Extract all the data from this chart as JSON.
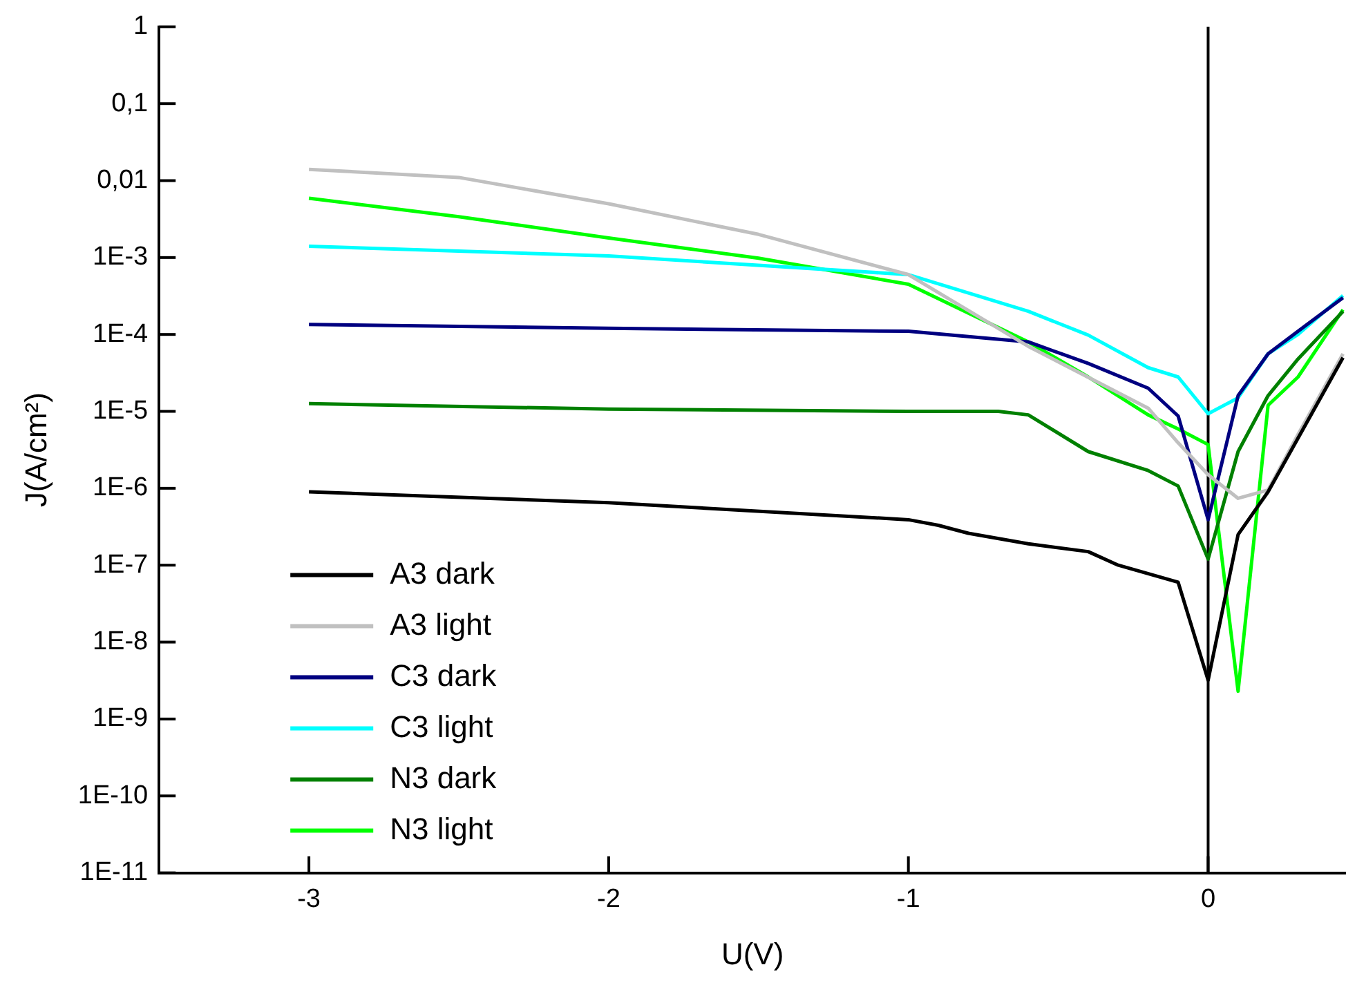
{
  "chart_data": {
    "type": "line",
    "xlabel": "U(V)",
    "ylabel": "J(A/cm²)",
    "log": "y",
    "grid": false,
    "legend": "bottom left",
    "marker": "none",
    "line_style": "solid",
    "xlim": [
      -3.5,
      0.46
    ],
    "xticks": [
      -3,
      -2,
      -1,
      0
    ],
    "ylim": [
      1e-11,
      1
    ],
    "yticks": [
      {
        "value": 1e-11,
        "label": "1E-11"
      },
      {
        "value": 1e-10,
        "label": "1E-10"
      },
      {
        "value": 1e-09,
        "label": "1E-9"
      },
      {
        "value": 1e-08,
        "label": "1E-8"
      },
      {
        "value": 1e-07,
        "label": "1E-7"
      },
      {
        "value": 1e-06,
        "label": "1E-6"
      },
      {
        "value": 1e-05,
        "label": "1E-5"
      },
      {
        "value": 0.0001,
        "label": "1E-4"
      },
      {
        "value": 0.001,
        "label": "1E-3"
      },
      {
        "value": 0.01,
        "label": "0,01"
      },
      {
        "value": 0.1,
        "label": "0,1"
      },
      1
    ],
    "ref_lines": [
      {
        "axis": "x",
        "value": 0,
        "color": "#000000"
      }
    ],
    "series": [
      {
        "name": "A3 dark",
        "color": "#000000",
        "x": [
          -3,
          -2,
          -1,
          -0.9,
          -0.8,
          -0.6,
          -0.4,
          -0.3,
          -0.1,
          0,
          0.1,
          0.2,
          0.45
        ],
        "values": [
          9e-07,
          6.5e-07,
          3.9e-07,
          3.3e-07,
          2.6e-07,
          1.9e-07,
          1.5e-07,
          1e-07,
          6e-08,
          3.2e-09,
          2.5e-07,
          9e-07,
          5e-05
        ]
      },
      {
        "name": "A3 light",
        "color": "#c0c0c0",
        "x": [
          -3,
          -2.5,
          -2,
          -1.5,
          -1,
          -0.6,
          -0.2,
          -0.1,
          0,
          0.1,
          0.2,
          0.3,
          0.45
        ],
        "values": [
          0.014,
          0.011,
          0.005,
          0.002,
          0.0006,
          7e-05,
          1.1e-05,
          3.9e-06,
          1.5e-06,
          7.4e-07,
          9.5e-07,
          5e-06,
          5.6e-05
        ]
      },
      {
        "name": "C3 dark",
        "color": "#000080",
        "x": [
          -3,
          -2,
          -1,
          -0.6,
          -0.4,
          -0.2,
          -0.1,
          0,
          0.1,
          0.2,
          0.3,
          0.45
        ],
        "values": [
          0.000135,
          0.00012,
          0.00011,
          8e-05,
          4.2e-05,
          2e-05,
          8.7e-06,
          3.9e-07,
          1.6e-05,
          5.6e-05,
          0.00011,
          0.0003
        ]
      },
      {
        "name": "C3 light",
        "color": "#00ffff",
        "x": [
          -3,
          -2,
          -1,
          -0.6,
          -0.4,
          -0.2,
          -0.1,
          0,
          0.1,
          0.2,
          0.3,
          0.45
        ],
        "values": [
          0.0014,
          0.00105,
          0.0006,
          0.0002,
          9.8e-05,
          3.7e-05,
          2.8e-05,
          9.3e-06,
          1.5e-05,
          5.6e-05,
          0.0001,
          0.00032
        ]
      },
      {
        "name": "N3 dark",
        "color": "#008000",
        "x": [
          -3,
          -2,
          -1,
          -0.7,
          -0.6,
          -0.4,
          -0.2,
          -0.1,
          0,
          0.1,
          0.2,
          0.3,
          0.45
        ],
        "values": [
          1.26e-05,
          1.07e-05,
          1e-05,
          1e-05,
          9e-06,
          3e-06,
          1.7e-06,
          1.07e-06,
          1.2e-07,
          3e-06,
          1.6e-05,
          4.8e-05,
          0.0002
        ]
      },
      {
        "name": "N3 light",
        "color": "#00ff00",
        "x": [
          -3,
          -2.5,
          -2,
          -1.5,
          -1,
          -0.6,
          -0.4,
          -0.2,
          -0.1,
          0,
          0.1,
          0.2,
          0.3,
          0.45
        ],
        "values": [
          0.0059,
          0.0034,
          0.0018,
          0.00098,
          0.00045,
          8e-05,
          2.8e-05,
          9e-06,
          5.9e-06,
          3.7e-06,
          2.3e-09,
          1.2e-05,
          2.8e-05,
          0.00021
        ]
      }
    ]
  }
}
